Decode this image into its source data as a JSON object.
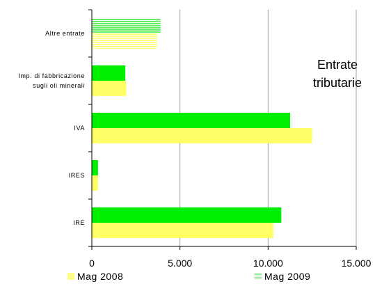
{
  "chart_data": {
    "type": "bar",
    "orientation": "horizontal",
    "title": [
      "Entrate",
      "tributarie"
    ],
    "categories": [
      [
        "Altre entrate"
      ],
      [
        "Imp. di fabbricazione",
        "sugli oli minerali"
      ],
      [
        "IVA"
      ],
      [
        "IRES"
      ],
      [
        "IRE"
      ]
    ],
    "series": [
      {
        "name": "Mag 2008",
        "color": "#FFFF66",
        "values": [
          3700,
          1950,
          12500,
          350,
          10300
        ]
      },
      {
        "name": "Mag 2009",
        "color": "#00EE00",
        "values": [
          3900,
          1900,
          11250,
          350,
          10750
        ]
      }
    ],
    "x_ticks": [
      "0",
      "5.000",
      "10.000",
      "15.000"
    ],
    "xlim": [
      0,
      15000
    ],
    "grid": true,
    "legend_placement": "bottom"
  }
}
